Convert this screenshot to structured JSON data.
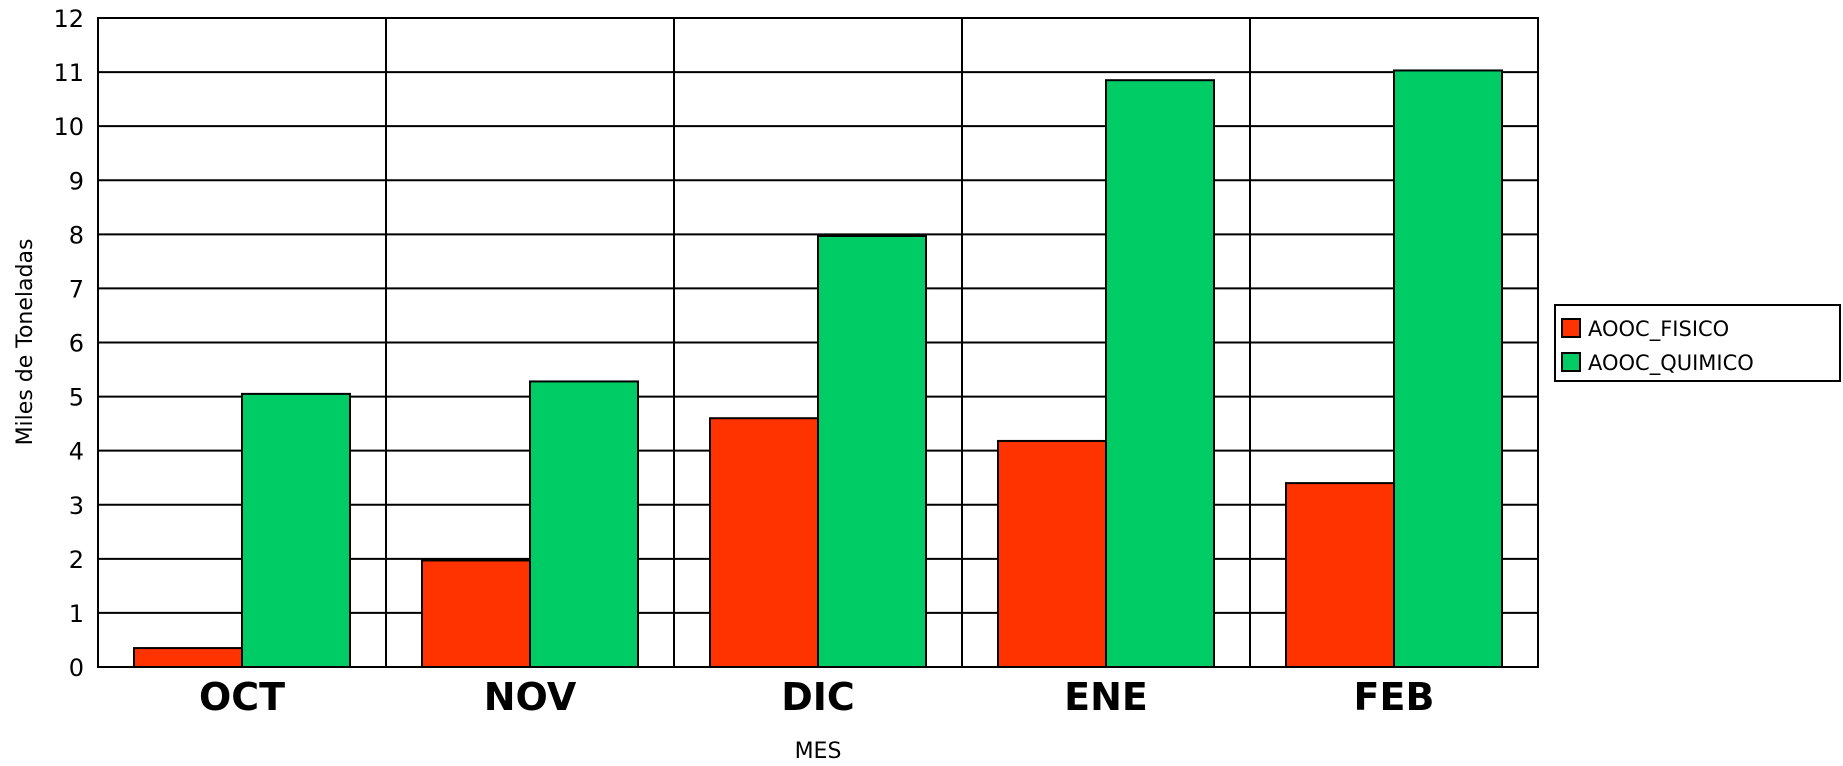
{
  "chart_data": {
    "type": "bar",
    "title": "",
    "xlabel": "MES",
    "ylabel": "Miles de Toneladas",
    "categories": [
      "OCT",
      "NOV",
      "DIC",
      "ENE",
      "FEB"
    ],
    "series": [
      {
        "name": "AOOC_FISICO",
        "color": "#ff3300",
        "values": [
          0.35,
          1.97,
          4.6,
          4.18,
          3.4
        ]
      },
      {
        "name": "AOOC_QUIMICO",
        "color": "#00cc66",
        "values": [
          5.05,
          5.28,
          7.97,
          10.85,
          11.03
        ]
      }
    ],
    "ylim": [
      0,
      12
    ],
    "yticks": [
      "0",
      "1",
      "2",
      "3",
      "4",
      "5",
      "6",
      "7",
      "8",
      "9",
      "10",
      "11",
      "12"
    ],
    "grid": true,
    "legend_position": "right"
  }
}
